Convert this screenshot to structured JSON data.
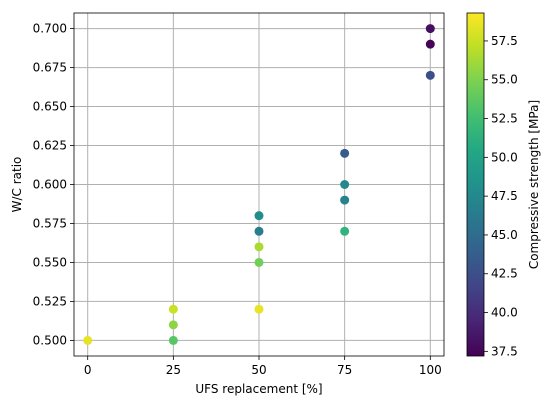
{
  "chart_data": {
    "type": "scatter",
    "title": "",
    "xlabel": "UFS replacement [%]",
    "ylabel": "W/C ratio",
    "xlim": [
      -4,
      104
    ],
    "ylim": [
      0.49,
      0.71
    ],
    "xticks": [
      0,
      25,
      50,
      75,
      100
    ],
    "xtick_labels": [
      "0",
      "25",
      "50",
      "75",
      "100"
    ],
    "yticks": [
      0.5,
      0.525,
      0.55,
      0.575,
      0.6,
      0.625,
      0.65,
      0.675,
      0.7
    ],
    "ytick_labels": [
      "0.500",
      "0.525",
      "0.550",
      "0.575",
      "0.600",
      "0.625",
      "0.650",
      "0.675",
      "0.700"
    ],
    "grid": true,
    "colormap": "viridis",
    "colorbar": {
      "label": "Compressive strength [MPa]",
      "range": [
        37.2,
        59.3
      ],
      "ticks": [
        37.5,
        40.0,
        42.5,
        45.0,
        47.5,
        50.0,
        52.5,
        55.0,
        57.5
      ],
      "tick_labels": [
        "37.5",
        "40.0",
        "42.5",
        "45.0",
        "47.5",
        "50.0",
        "52.5",
        "55.0",
        "57.5"
      ]
    },
    "points": [
      {
        "x": 0,
        "y": 0.5,
        "c": 58.5
      },
      {
        "x": 25,
        "y": 0.5,
        "c": 53.5
      },
      {
        "x": 25,
        "y": 0.51,
        "c": 55.5
      },
      {
        "x": 25,
        "y": 0.52,
        "c": 57.5
      },
      {
        "x": 50,
        "y": 0.52,
        "c": 58.5
      },
      {
        "x": 50,
        "y": 0.55,
        "c": 54.5
      },
      {
        "x": 50,
        "y": 0.56,
        "c": 56.5
      },
      {
        "x": 50,
        "y": 0.57,
        "c": 46.5
      },
      {
        "x": 50,
        "y": 0.58,
        "c": 48.0
      },
      {
        "x": 75,
        "y": 0.57,
        "c": 51.5
      },
      {
        "x": 75,
        "y": 0.59,
        "c": 47.0
      },
      {
        "x": 75,
        "y": 0.6,
        "c": 47.5
      },
      {
        "x": 75,
        "y": 0.62,
        "c": 43.5
      },
      {
        "x": 100,
        "y": 0.67,
        "c": 42.5
      },
      {
        "x": 100,
        "y": 0.69,
        "c": 37.5
      },
      {
        "x": 100,
        "y": 0.7,
        "c": 38.0
      }
    ]
  }
}
